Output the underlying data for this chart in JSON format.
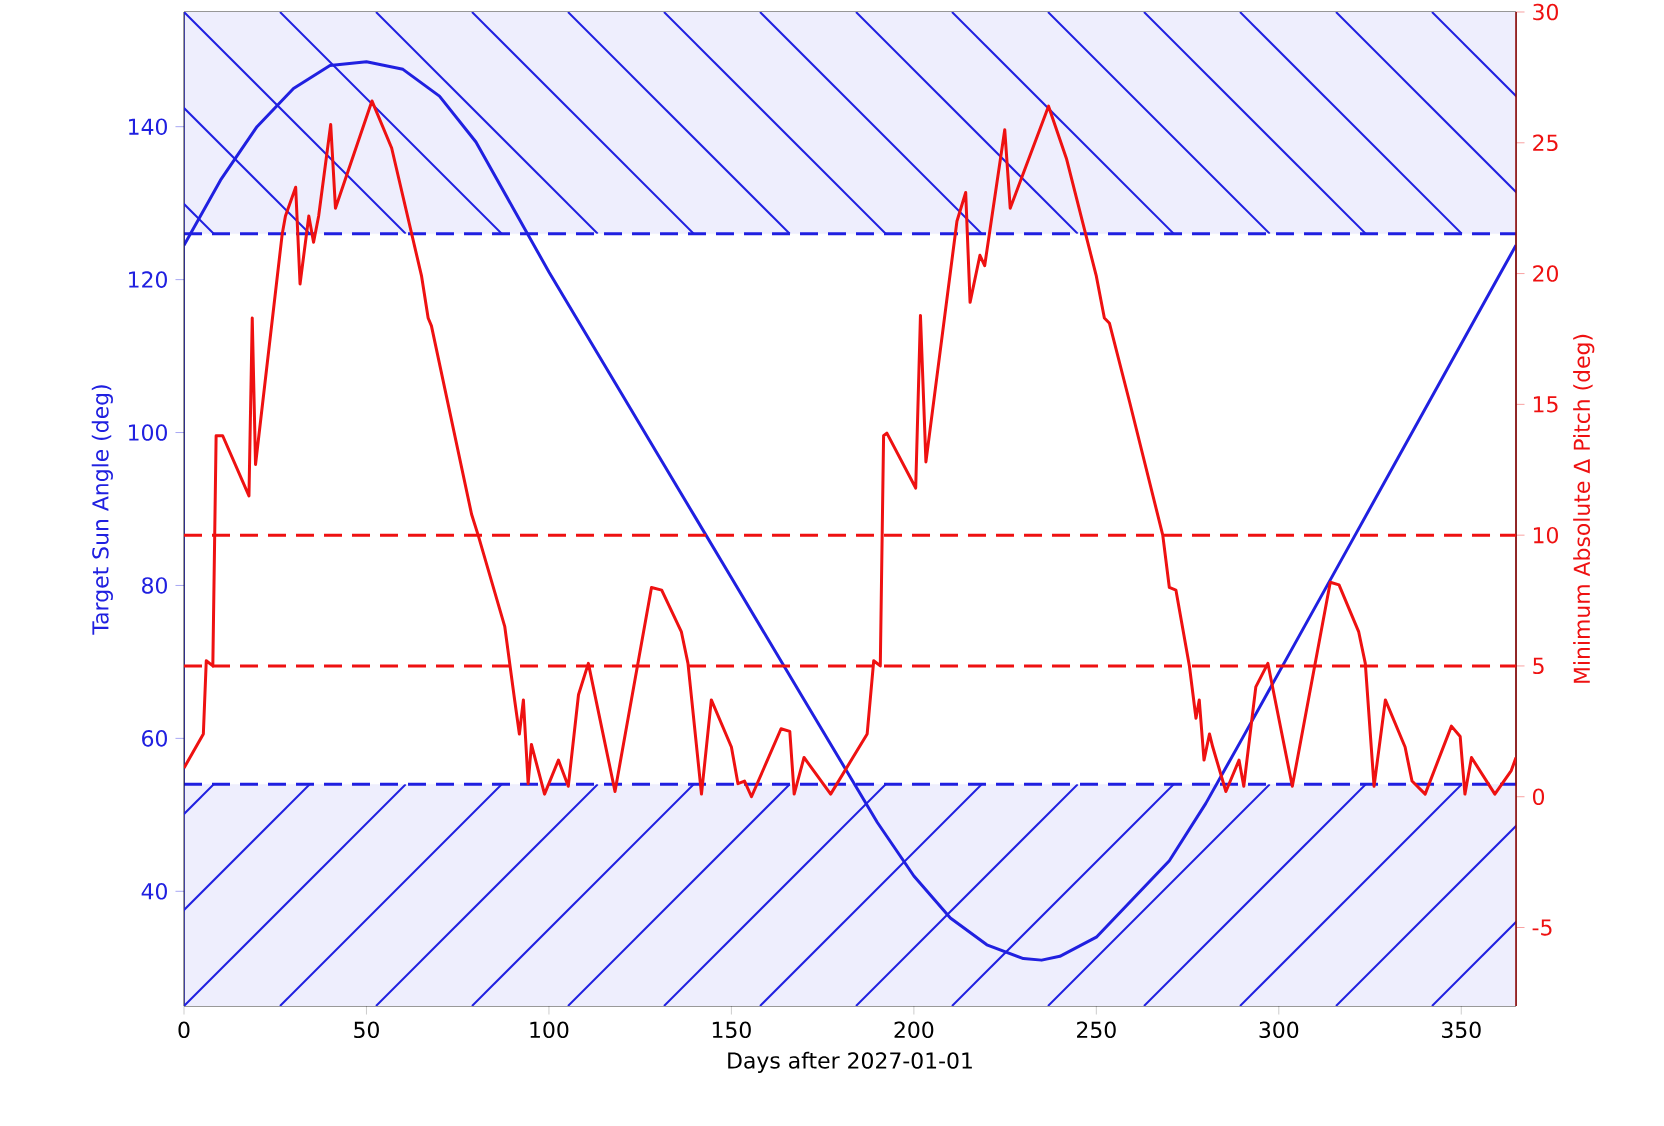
{
  "chart_data": {
    "type": "line",
    "xlabel": "Days after 2027-01-01",
    "ylabel": "Target Sun Angle (deg)",
    "y2label": "Minimum Absolute Δ Pitch (deg)",
    "xlim": [
      0,
      365
    ],
    "ylim": [
      25,
      155
    ],
    "y2lim": [
      -8,
      30
    ],
    "xticks": [
      0,
      50,
      100,
      150,
      200,
      250,
      300,
      350
    ],
    "yticks": [
      40,
      60,
      80,
      100,
      120,
      140
    ],
    "y2ticks": [
      -5,
      0,
      5,
      10,
      15,
      20,
      25,
      30
    ],
    "bands": [
      {
        "axis": "y",
        "from": 126,
        "to": 155,
        "color": "#eeeefd"
      },
      {
        "axis": "y",
        "from": 25,
        "to": 54,
        "color": "#eeeefd"
      }
    ],
    "ref_lines": [
      {
        "axis": "y",
        "value": 126,
        "color": "#2020e0",
        "line_style": "dashed"
      },
      {
        "axis": "y",
        "value": 54,
        "color": "#2020e0",
        "line_style": "dashed"
      },
      {
        "axis": "y2",
        "value": 10,
        "color": "#ee1111",
        "line_style": "dashed"
      },
      {
        "axis": "y2",
        "value": 5,
        "color": "#ee1111",
        "line_style": "dashed"
      }
    ],
    "series": [
      {
        "color": "#2020e0",
        "axis": "y",
        "x": [
          0,
          10,
          20,
          30,
          40,
          50,
          60,
          70,
          80,
          90,
          100,
          110,
          120,
          130,
          140,
          150,
          160,
          170,
          180,
          190,
          200,
          210,
          220,
          230,
          235,
          240,
          250,
          260,
          270,
          280,
          290,
          300,
          310,
          320,
          330,
          340,
          350,
          360,
          365
        ],
        "values": [
          124.5,
          133,
          140,
          145,
          148,
          148.5,
          147.5,
          144,
          138,
          129.5,
          121,
          113,
          105,
          97,
          89,
          81,
          73,
          65,
          57,
          49,
          42,
          36.5,
          33,
          31.2,
          31,
          31.5,
          34,
          39,
          44,
          51.5,
          60,
          68.6,
          77.2,
          85.8,
          94.4,
          103,
          111.6,
          120.2,
          124.5
        ]
      },
      {
        "color": "#ee1111",
        "axis": "y2",
        "x": [
          0,
          5.3,
          6.1,
          7.9,
          8.8,
          10.6,
          17.8,
          18.7,
          19.6,
          26.9,
          27.8,
          30.6,
          31.8,
          34.2,
          35.5,
          36.9,
          40.2,
          41.5,
          51.5,
          56.9,
          65.1,
          66.9,
          67.8,
          78.8,
          80.6,
          87.9,
          90.6,
          91.9,
          93,
          94.3,
          95.2,
          98.8,
          102.6,
          105.3,
          108.1,
          110.8,
          118.1,
          128.1,
          130.9,
          136.3,
          138.1,
          141.8,
          144.5,
          150,
          151.8,
          153.6,
          155.5,
          163.6,
          166,
          167.2,
          169.9,
          177.2,
          187.2,
          189,
          190.8,
          191.7,
          192.6,
          200.5,
          201.8,
          203.3,
          211.8,
          214.2,
          215.4,
          218.1,
          219.4,
          224.9,
          226.4,
          236.9,
          241.8,
          250,
          252.2,
          253.6,
          259.1,
          268.2,
          270,
          271.8,
          275.5,
          277.3,
          278.2,
          279.5,
          281,
          281.9,
          285.5,
          289.1,
          290.4,
          293.7,
          297,
          303.7,
          314.1,
          316.5,
          321.9,
          323.7,
          326.1,
          329.2,
          334.6,
          336.5,
          340.1,
          347.3,
          349.7,
          351,
          352.8,
          359.2,
          363.7,
          365
        ],
        "values": [
          1.1,
          2.4,
          5.2,
          5.0,
          13.8,
          13.8,
          11.5,
          18.3,
          12.7,
          21.5,
          22.2,
          23.3,
          19.6,
          22.2,
          21.2,
          22.2,
          25.7,
          22.5,
          26.6,
          24.8,
          19.9,
          18.3,
          18.0,
          10.8,
          10.0,
          6.5,
          3.7,
          2.4,
          3.7,
          0.5,
          2.0,
          0.1,
          1.4,
          0.4,
          3.9,
          5.1,
          0.2,
          8.0,
          7.9,
          6.3,
          5.1,
          0.1,
          3.7,
          1.9,
          0.5,
          0.6,
          0,
          2.6,
          2.5,
          0.1,
          1.5,
          0.1,
          2.4,
          5.2,
          5.0,
          13.8,
          13.9,
          11.8,
          18.4,
          12.8,
          22.0,
          23.1,
          18.9,
          20.7,
          20.3,
          25.5,
          22.5,
          26.4,
          24.4,
          19.9,
          18.3,
          18.1,
          15.1,
          10.0,
          8.0,
          7.9,
          5.0,
          3.0,
          3.7,
          1.4,
          2.4,
          1.9,
          0.2,
          1.4,
          0.4,
          4.2,
          5.1,
          0.4,
          8.2,
          8.1,
          6.3,
          5.1,
          0.4,
          3.7,
          1.9,
          0.6,
          0.1,
          2.7,
          2.3,
          0.1,
          1.5,
          0.1,
          1.0,
          1.5
        ]
      }
    ]
  }
}
